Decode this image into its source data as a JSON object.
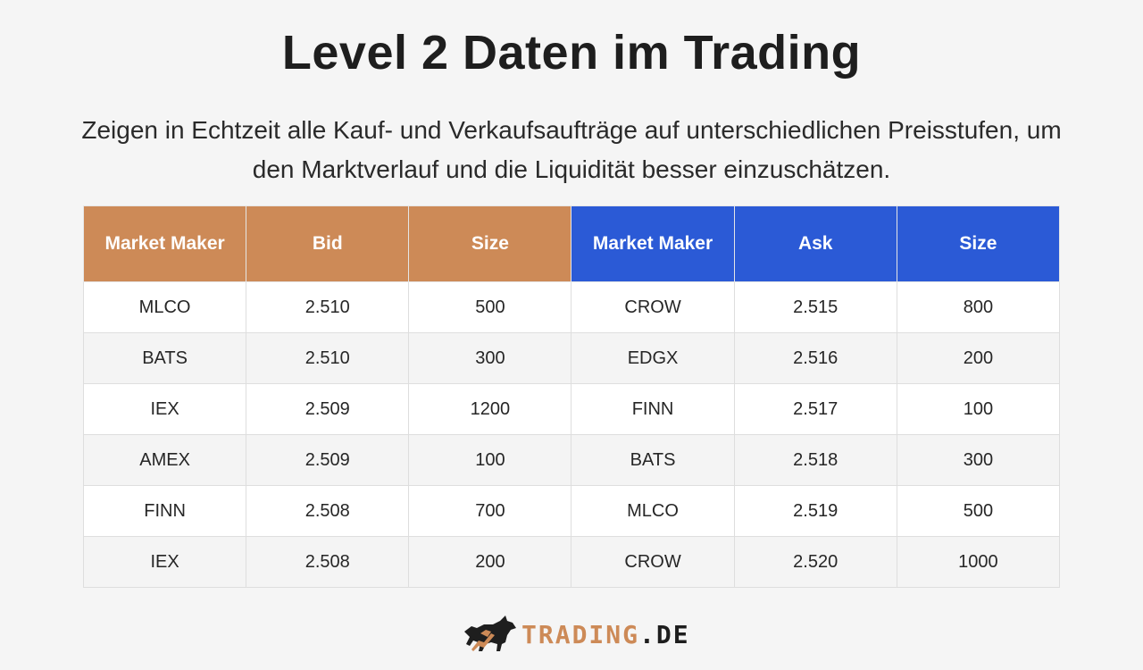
{
  "title": "Level 2 Daten im Trading",
  "subtitle": "Zeigen in Echtzeit alle Kauf- und Verkaufsaufträge auf unterschiedlichen Preisstufen, um den Marktverlauf und die Liquidität besser einzuschätzen.",
  "colors": {
    "bid_header": "#cd8a57",
    "ask_header": "#2b5ad6"
  },
  "table": {
    "headers": [
      "Market Maker",
      "Bid",
      "Size",
      "Market Maker",
      "Ask",
      "Size"
    ],
    "rows": [
      [
        "MLCO",
        "2.510",
        "500",
        "CROW",
        "2.515",
        "800"
      ],
      [
        "BATS",
        "2.510",
        "300",
        "EDGX",
        "2.516",
        "200"
      ],
      [
        "IEX",
        "2.509",
        "1200",
        "FINN",
        "2.517",
        "100"
      ],
      [
        "AMEX",
        "2.509",
        "100",
        "BATS",
        "2.518",
        "300"
      ],
      [
        "FINN",
        "2.508",
        "700",
        "MLCO",
        "2.519",
        "500"
      ],
      [
        "IEX",
        "2.508",
        "200",
        "CROW",
        "2.520",
        "1000"
      ]
    ]
  },
  "logo": {
    "icon": "bull-icon",
    "brand": "TRADING",
    "tld": ".DE"
  }
}
